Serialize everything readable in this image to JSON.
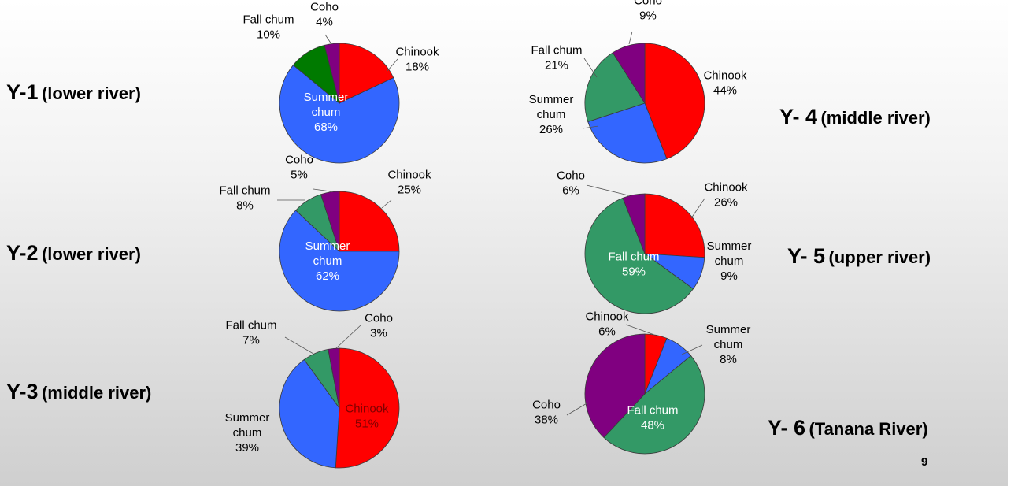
{
  "slide": {
    "page_number": "9",
    "regions": [
      {
        "code": "Y-1",
        "river": "(lower river)"
      },
      {
        "code": "Y-2",
        "river": "(lower river)"
      },
      {
        "code": "Y-3",
        "river": "(middle river)"
      },
      {
        "code": "Y- 4",
        "river": "(middle river)"
      },
      {
        "code": "Y- 5",
        "river": "(upper river)"
      },
      {
        "code": "Y- 6",
        "river": "(Tanana River)"
      }
    ]
  },
  "colors": {
    "Chinook": "#ff0000",
    "Summer chum": "#3366ff",
    "Fall chum green": "#007a00",
    "Fall chum teal": "#339966",
    "Coho": "#800080"
  },
  "chart_data": [
    {
      "type": "pie",
      "id": "Y-1",
      "slices": [
        {
          "label": "Chinook",
          "value": 18,
          "color": "#ff0000"
        },
        {
          "label": "Summer chum",
          "value": 68,
          "color": "#3366ff"
        },
        {
          "label": "Fall chum",
          "value": 10,
          "color": "#007a00"
        },
        {
          "label": "Coho",
          "value": 4,
          "color": "#800080"
        }
      ]
    },
    {
      "type": "pie",
      "id": "Y-2",
      "slices": [
        {
          "label": "Chinook",
          "value": 25,
          "color": "#ff0000"
        },
        {
          "label": "Summer chum",
          "value": 62,
          "color": "#3366ff"
        },
        {
          "label": "Fall chum",
          "value": 8,
          "color": "#339966"
        },
        {
          "label": "Coho",
          "value": 5,
          "color": "#800080"
        }
      ]
    },
    {
      "type": "pie",
      "id": "Y-3",
      "slices": [
        {
          "label": "Chinook",
          "value": 51,
          "color": "#ff0000"
        },
        {
          "label": "Summer chum",
          "value": 39,
          "color": "#3366ff"
        },
        {
          "label": "Fall chum",
          "value": 7,
          "color": "#339966"
        },
        {
          "label": "Coho",
          "value": 3,
          "color": "#800080"
        }
      ]
    },
    {
      "type": "pie",
      "id": "Y-4",
      "slices": [
        {
          "label": "Chinook",
          "value": 44,
          "color": "#ff0000"
        },
        {
          "label": "Summer chum",
          "value": 26,
          "color": "#3366ff"
        },
        {
          "label": "Fall chum",
          "value": 21,
          "color": "#339966"
        },
        {
          "label": "Coho",
          "value": 9,
          "color": "#800080"
        }
      ]
    },
    {
      "type": "pie",
      "id": "Y-5",
      "slices": [
        {
          "label": "Chinook",
          "value": 26,
          "color": "#ff0000"
        },
        {
          "label": "Summer chum",
          "value": 9,
          "color": "#3366ff"
        },
        {
          "label": "Fall chum",
          "value": 59,
          "color": "#339966"
        },
        {
          "label": "Coho",
          "value": 6,
          "color": "#800080"
        }
      ]
    },
    {
      "type": "pie",
      "id": "Y-6",
      "slices": [
        {
          "label": "Chinook",
          "value": 6,
          "color": "#ff0000"
        },
        {
          "label": "Summer chum",
          "value": 8,
          "color": "#3366ff"
        },
        {
          "label": "Fall chum",
          "value": 48,
          "color": "#339966"
        },
        {
          "label": "Coho",
          "value": 38,
          "color": "#800080"
        }
      ]
    }
  ]
}
